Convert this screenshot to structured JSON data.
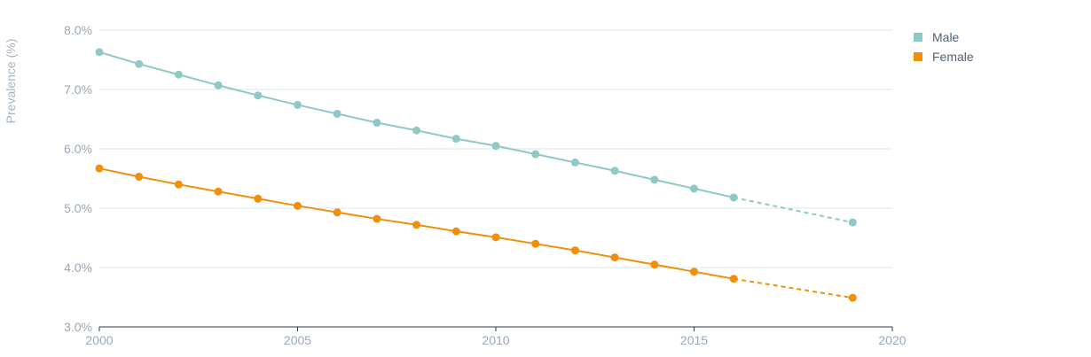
{
  "chart_data": {
    "type": "line",
    "ylabel": "Prevalence (%)",
    "xlabel": "",
    "xlim": [
      2000,
      2020
    ],
    "ylim": [
      3.0,
      8.0
    ],
    "x_ticks": [
      "2000",
      "2005",
      "2010",
      "2015",
      "2020"
    ],
    "y_ticks": [
      "3.0%",
      "4.0%",
      "5.0%",
      "6.0%",
      "7.0%",
      "8.0%"
    ],
    "grid": "horizontal",
    "legend_position": "top-right",
    "series": [
      {
        "name": "Male",
        "color": "#90c8c8",
        "x": [
          2000,
          2001,
          2002,
          2003,
          2004,
          2005,
          2006,
          2007,
          2008,
          2009,
          2010,
          2011,
          2012,
          2013,
          2014,
          2015,
          2016
        ],
        "values": [
          7.63,
          7.43,
          7.25,
          7.07,
          6.9,
          6.74,
          6.59,
          6.44,
          6.31,
          6.17,
          6.05,
          5.91,
          5.77,
          5.63,
          5.48,
          5.33,
          5.18
        ],
        "projection": {
          "x": [
            2016,
            2019
          ],
          "values": [
            5.18,
            4.76
          ]
        }
      },
      {
        "name": "Female",
        "color": "#f0900a",
        "x": [
          2000,
          2001,
          2002,
          2003,
          2004,
          2005,
          2006,
          2007,
          2008,
          2009,
          2010,
          2011,
          2012,
          2013,
          2014,
          2015,
          2016
        ],
        "values": [
          5.67,
          5.53,
          5.4,
          5.28,
          5.16,
          5.04,
          4.93,
          4.82,
          4.72,
          4.61,
          4.51,
          4.4,
          4.29,
          4.17,
          4.05,
          3.93,
          3.81
        ],
        "projection": {
          "x": [
            2016,
            2019
          ],
          "values": [
            3.81,
            3.49
          ]
        }
      }
    ]
  }
}
